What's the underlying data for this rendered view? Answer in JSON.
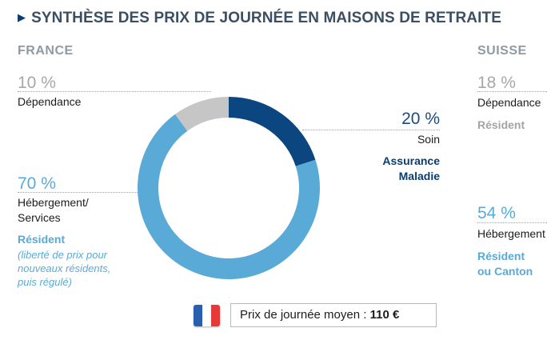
{
  "header": {
    "title": "SYNTHÈSE DES PRIX DE JOURNÉE EN MAISONS DE RETRAITE"
  },
  "france": {
    "heading": "FRANCE",
    "dependance_pct": "10 %",
    "dependance_label": "Dépendance",
    "hebergement_pct": "70 %",
    "hebergement_label_line1": "Hébergement/",
    "hebergement_label_line2": "Services",
    "resident_label": "Résident",
    "resident_note_line1": "(liberté de prix pour",
    "resident_note_line2": "nouveaux résidents,",
    "resident_note_line3": "puis régulé)",
    "soin_pct": "20 %",
    "soin_label": "Soin",
    "payer_line1": "Assurance",
    "payer_line2": "Maladie",
    "avg_label": "Prix de journée moyen : ",
    "avg_value": "110 €"
  },
  "suisse": {
    "heading": "SUISSE",
    "dependance_pct": "18 %",
    "dependance_label": "Dépendance",
    "resident_label": "Résident",
    "hebergement_pct": "54 %",
    "hebergement_label": "Hébergement",
    "payer_line1": "Résident",
    "payer_line2": "ou Canton"
  },
  "colors": {
    "soin": "#0b4680",
    "hebergement": "#5aaad8",
    "dependance": "#c6c6c6",
    "flag_blue": "#2a5fb0",
    "flag_white": "#ffffff",
    "flag_red": "#e63a3a"
  },
  "chart_data": {
    "type": "pie",
    "variant": "donut",
    "title": "FRANCE",
    "categories": [
      "Soin",
      "Hébergement/Services",
      "Dépendance"
    ],
    "values": [
      20,
      70,
      10
    ],
    "unit": "%",
    "start": "top",
    "direction": "clockwise"
  }
}
